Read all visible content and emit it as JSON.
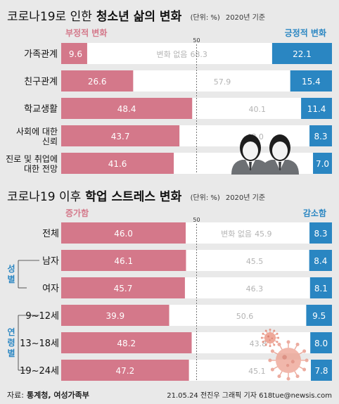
{
  "chart_data": [
    {
      "type": "bar",
      "title": "코로나19로 인한",
      "title_bold": "청소년 삶의 변화",
      "unit_note": "(단위: %)",
      "year_note": "2020년 기준",
      "neg_label": "부정적 변화",
      "pos_label": "긍정적 변화",
      "mid_value": 50,
      "nochange_label": "변화 없음",
      "categories": [
        "가족관계",
        "친구관계",
        "학교생활",
        "사회에 대한|신뢰",
        "진로 및 취업에|대한 전망"
      ],
      "series": [
        {
          "name": "부정적 변화",
          "values": [
            9.6,
            26.6,
            48.4,
            43.7,
            41.6
          ]
        },
        {
          "name": "변화 없음",
          "values": [
            68.3,
            57.9,
            40.1,
            48.0,
            51.3
          ]
        },
        {
          "name": "긍정적 변화",
          "values": [
            22.1,
            15.4,
            11.4,
            8.3,
            7.0
          ]
        }
      ]
    },
    {
      "type": "bar",
      "title": "코로나19 이후",
      "title_bold": "학업 스트레스 변화",
      "unit_note": "(단위: %)",
      "year_note": "2020년 기준",
      "neg_label": "증가함",
      "pos_label": "감소함",
      "mid_value": 50,
      "nochange_label": "변화 없음",
      "categories": [
        "전체",
        "남자",
        "여자",
        "9~12세",
        "13~18세",
        "19~24세"
      ],
      "group_labels": [
        {
          "label": "성별",
          "rows": [
            1,
            2
          ]
        },
        {
          "label": "연령별",
          "rows": [
            3,
            5
          ]
        }
      ],
      "series": [
        {
          "name": "증가함",
          "values": [
            46.0,
            46.1,
            45.7,
            39.9,
            48.2,
            47.2
          ]
        },
        {
          "name": "변화 없음",
          "values": [
            45.9,
            45.5,
            46.3,
            50.6,
            43.8,
            45.1
          ]
        },
        {
          "name": "감소함",
          "values": [
            8.3,
            8.4,
            8.1,
            9.5,
            8.0,
            7.8
          ]
        }
      ]
    }
  ],
  "colors": {
    "negative": "#d4788a",
    "neutral": "#ffffff",
    "positive": "#2a86c2",
    "neutral_text": "#b4b4b4",
    "label_pink": "#d4788a",
    "label_blue": "#2a86c2"
  },
  "footer": {
    "source_prefix": "자료:",
    "source_text": "통계청, 여성가족부",
    "credit": "21.05.24 전진우 그래픽 기자 618tue@newsis.com"
  }
}
